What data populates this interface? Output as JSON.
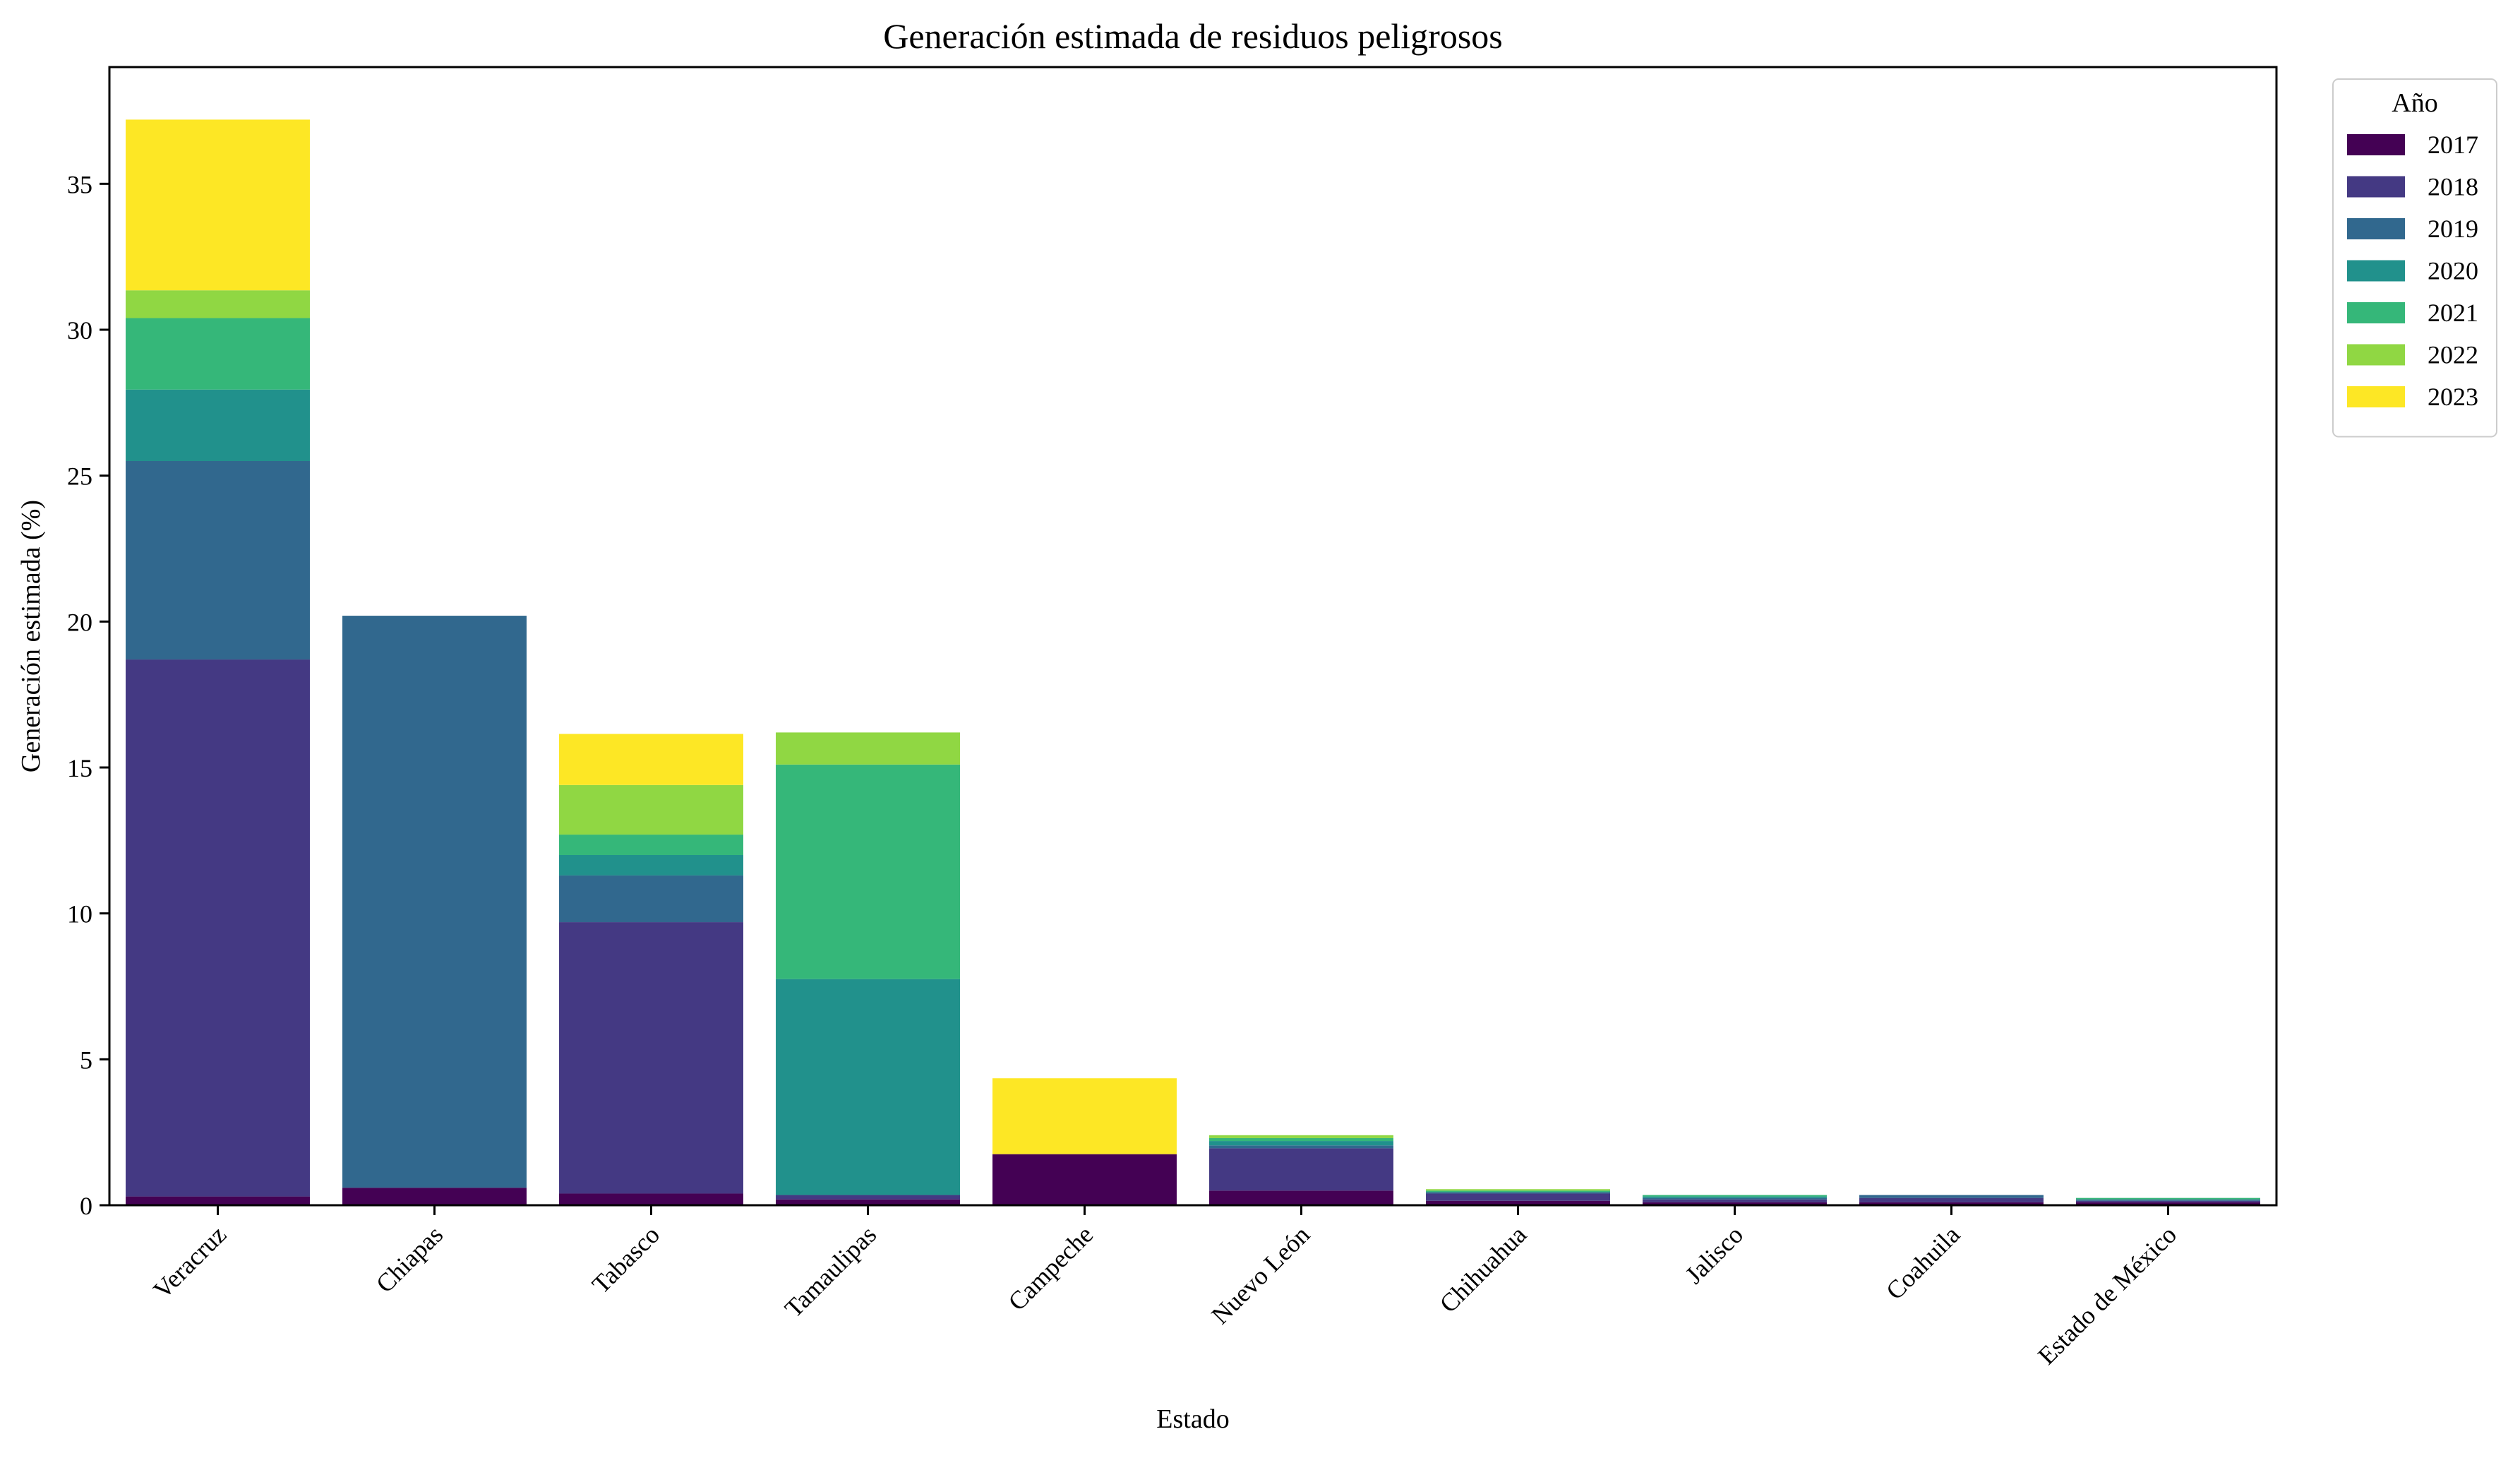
{
  "chart_data": {
    "type": "bar",
    "stacked": true,
    "title": "Generación estimada de residuos peligrosos",
    "xlabel": "Estado",
    "ylabel": "Generación estimada (%)",
    "ylim": [
      0,
      39
    ],
    "yticks": [
      0,
      5,
      10,
      15,
      20,
      25,
      30,
      35
    ],
    "grid": false,
    "legend": {
      "title": "Año",
      "placement": "outside top-right"
    },
    "categories": [
      "Veracruz",
      "Chiapas",
      "Tabasco",
      "Tamaulipas",
      "Campeche",
      "Nuevo León",
      "Chihuahua",
      "Jalisco",
      "Coahuila",
      "Estado de México"
    ],
    "series": [
      {
        "name": "2017",
        "color": "#440154",
        "values": [
          0.3,
          0.6,
          0.4,
          0.2,
          1.75,
          0.5,
          0.15,
          0.1,
          0.1,
          0.1
        ]
      },
      {
        "name": "2018",
        "color": "#443983",
        "values": [
          18.4,
          0.0,
          9.3,
          0.15,
          0.0,
          1.45,
          0.25,
          0.1,
          0.15,
          0.05
        ]
      },
      {
        "name": "2019",
        "color": "#31688e",
        "values": [
          6.8,
          19.6,
          1.6,
          0.0,
          0.0,
          0.1,
          0.05,
          0.05,
          0.1,
          0.05
        ]
      },
      {
        "name": "2020",
        "color": "#21918c",
        "values": [
          2.45,
          0.0,
          0.7,
          7.4,
          0.0,
          0.15,
          0.0,
          0.05,
          0.0,
          0.0
        ]
      },
      {
        "name": "2021",
        "color": "#35b779",
        "values": [
          2.45,
          0.0,
          0.7,
          7.35,
          0.0,
          0.1,
          0.05,
          0.05,
          0.0,
          0.05
        ]
      },
      {
        "name": "2022",
        "color": "#90d743",
        "values": [
          0.95,
          0.0,
          1.7,
          1.1,
          0.0,
          0.1,
          0.05,
          0.0,
          0.0,
          0.0
        ]
      },
      {
        "name": "2023",
        "color": "#fde725",
        "values": [
          5.85,
          0.0,
          1.75,
          0.0,
          2.6,
          0.0,
          0.0,
          0.0,
          0.0,
          0.0
        ]
      }
    ]
  }
}
